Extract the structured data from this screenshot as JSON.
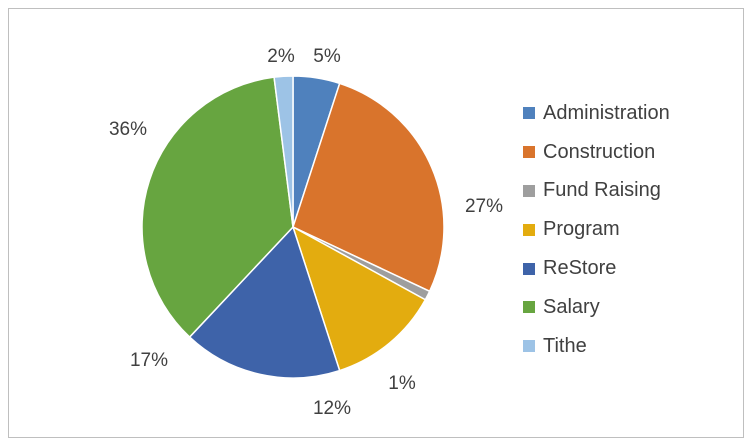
{
  "chart_data": {
    "type": "pie",
    "title": "",
    "legend_position": "right",
    "slices": [
      {
        "name": "Administration",
        "value": 5,
        "label": "5%",
        "color": "#4f81bd"
      },
      {
        "name": "Construction",
        "value": 27,
        "label": "27%",
        "color": "#d9742c"
      },
      {
        "name": "Fund Raising",
        "value": 1,
        "label": "1%",
        "color": "#9e9e9e"
      },
      {
        "name": "Program",
        "value": 12,
        "label": "12%",
        "color": "#e3ac0f"
      },
      {
        "name": "ReStore",
        "value": 17,
        "label": "17%",
        "color": "#3e63a9"
      },
      {
        "name": "Salary",
        "value": 36,
        "label": "36%",
        "color": "#67a540"
      },
      {
        "name": "Tithe",
        "value": 2,
        "label": "2%",
        "color": "#9dc3e6"
      }
    ]
  }
}
